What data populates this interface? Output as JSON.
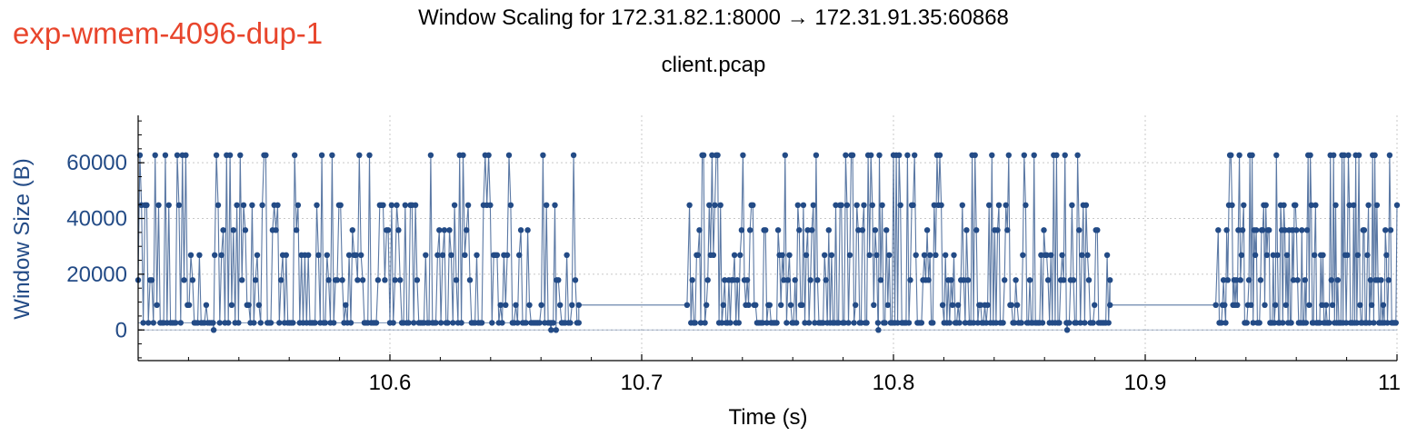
{
  "experiment_label": "exp-wmem-4096-dup-1",
  "chart_data": {
    "type": "line",
    "title": "Window Scaling for 172.31.82.1:8000 → 172.31.91.35:60868",
    "subtitle": "client.pcap",
    "xlabel": "Time (s)",
    "ylabel": "Window Size (B)",
    "xlim": [
      10.5,
      11.0
    ],
    "ylim": [
      -11000,
      77000
    ],
    "x_ticks": [
      "10.6",
      "10.7",
      "10.8",
      "10.9",
      "11"
    ],
    "y_ticks": [
      "0",
      "20000",
      "40000",
      "60000"
    ],
    "grid": true,
    "series": [
      {
        "color": "#234b86",
        "levels": [
          2560,
          8960,
          17920,
          26880,
          35840,
          44800,
          62720
        ],
        "segments": [
          {
            "x": [
              10.5,
              10.675
            ],
            "type": "burst",
            "count": 260
          },
          {
            "x": [
              10.675,
              10.718
            ],
            "type": "flat",
            "value": 8960
          },
          {
            "x": [
              10.719,
              10.886
            ],
            "type": "burst",
            "count": 300
          },
          {
            "x": [
              10.886,
              10.928
            ],
            "type": "flat",
            "value": 8960
          },
          {
            "x": [
              10.929,
              11.0
            ],
            "type": "burst",
            "count": 170
          }
        ],
        "dips_to_zero": [
          10.53,
          10.664,
          10.666,
          10.794,
          10.869
        ]
      }
    ]
  }
}
